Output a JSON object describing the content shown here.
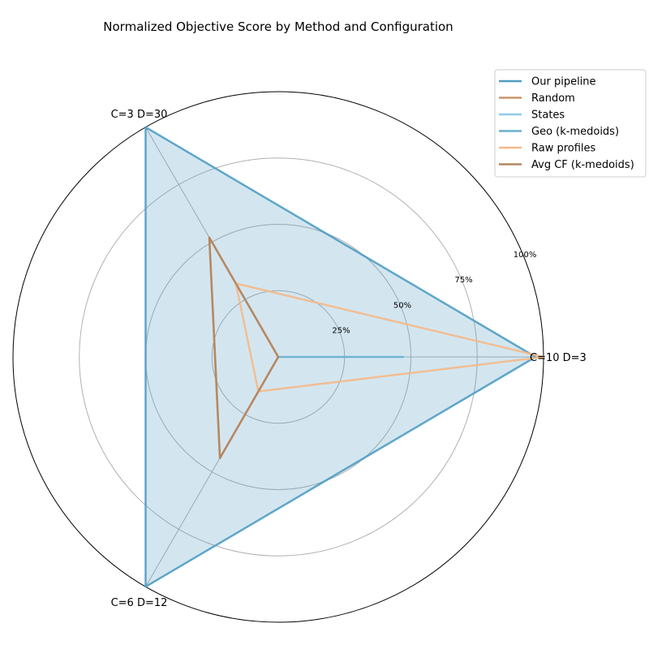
{
  "chart_data": {
    "type": "radar",
    "title": "Normalized Objective Score by Method and Configuration",
    "axes": [
      "C=10 D=3",
      "C=3 D=30",
      "C=6 D=12"
    ],
    "radial_ticks": [
      "25%",
      "50%",
      "75%",
      "100%"
    ],
    "radial_tick_values": [
      25,
      50,
      75,
      100
    ],
    "rmax": 100,
    "grid": true,
    "legend_position": "top-right",
    "series": [
      {
        "name": "Our pipeline",
        "values": [
          97,
          100,
          100
        ],
        "color": "#4f9dc3",
        "fill": true
      },
      {
        "name": "Random",
        "values": [
          0,
          52,
          44
        ],
        "color": "#c8956c",
        "fill": false
      },
      {
        "name": "States",
        "values": [
          0,
          0,
          0
        ],
        "color": "#8ecae6",
        "fill": false
      },
      {
        "name": "Geo (k-medoids)",
        "values": [
          47,
          0,
          0
        ],
        "color": "#6aafd0",
        "fill": false
      },
      {
        "name": "Raw profiles",
        "values": [
          100,
          32,
          15
        ],
        "color": "#f4b98a",
        "fill": false
      },
      {
        "name": "Avg CF (k-medoids)",
        "values": [
          0,
          52,
          44
        ],
        "color": "#b5865f",
        "fill": false
      }
    ]
  }
}
